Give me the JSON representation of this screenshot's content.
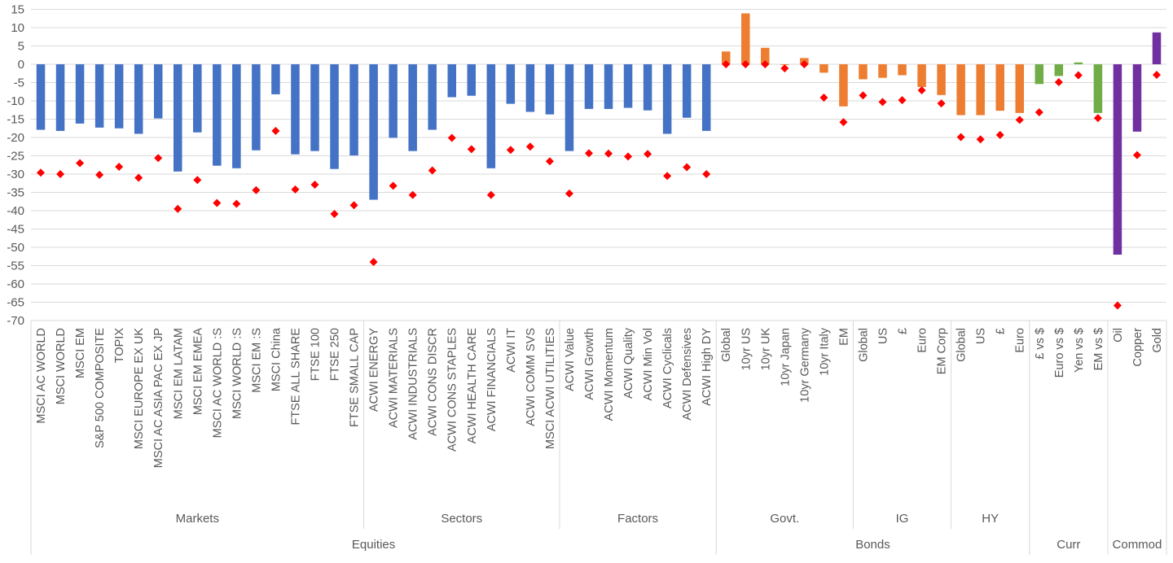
{
  "chart_data": {
    "type": "bar",
    "title": "",
    "xlabel": "",
    "ylabel": "",
    "ylim": [
      -70,
      15
    ],
    "yticks": [
      15,
      10,
      5,
      0,
      -5,
      -10,
      -15,
      -20,
      -25,
      -30,
      -35,
      -40,
      -45,
      -50,
      -55,
      -60,
      -65,
      -70
    ],
    "grid": true,
    "legend": "none",
    "colors": {
      "Equities": "#4472c4",
      "Bonds": "#ed7d31",
      "Curr": "#70ad47",
      "Commod": "#7030a0",
      "marker": "#ff0000",
      "grid": "#d9d9d9",
      "text": "#595959"
    },
    "groups": [
      {
        "name": "Equities",
        "subgroups": [
          {
            "name": "Markets",
            "categories": [
              "MSCI AC WORLD",
              "MSCI WORLD",
              "MSCI EM",
              "S&P 500 COMPOSITE",
              "TOPIX",
              "MSCI EUROPE EX UK",
              "MSCI AC ASIA PAC EX JP",
              "MSCI EM LATAM",
              "MSCI EM EMEA",
              "MSCI AC WORLD :S",
              "MSCI WORLD :S",
              "MSCI EM :S",
              "MSCI China",
              "FTSE ALL SHARE",
              "FTSE 100",
              "FTSE 250",
              "FTSE SMALL CAP"
            ]
          },
          {
            "name": "Sectors",
            "categories": [
              "ACWI ENERGY",
              "ACWI MATERIALS",
              "ACWI INDUSTRIALS",
              "ACWI CONS DISCR",
              "ACWI CONS STAPLES",
              "ACWI HEALTH CARE",
              "ACWI FINANCIALS",
              "ACWI IT",
              "ACWI COMM SVS",
              "MSCI ACWI UTILITIES"
            ]
          },
          {
            "name": "Factors",
            "categories": [
              "ACWI Value",
              "ACWI Growth",
              "ACWI Momentum",
              "ACWI Quality",
              "ACWI Min Vol",
              "ACWI Cyclicals",
              "ACWI Defensives",
              "ACWI High DY"
            ]
          }
        ]
      },
      {
        "name": "Bonds",
        "subgroups": [
          {
            "name": "Govt.",
            "categories": [
              "Global",
              "10yr US",
              "10yr UK",
              "10yr Japan",
              "10yr Germany",
              "10yr Italy",
              "EM"
            ]
          },
          {
            "name": "IG",
            "categories": [
              "Global",
              "US",
              "£",
              "Euro",
              "EM Corp"
            ]
          },
          {
            "name": "HY",
            "categories": [
              "Global",
              "US",
              "£",
              "Euro"
            ]
          }
        ]
      },
      {
        "name": "Curr",
        "subgroups": [
          {
            "name": "",
            "categories": [
              "£ vs $",
              "Euro vs $",
              "Yen vs $",
              "EM vs $"
            ]
          }
        ]
      },
      {
        "name": "Commod",
        "subgroups": [
          {
            "name": "",
            "categories": [
              "Oil",
              "Copper",
              "Gold"
            ]
          }
        ]
      }
    ],
    "series": [
      {
        "name": "bars",
        "kind": "bar",
        "values": [
          -17.9,
          -18.2,
          -16.2,
          -17.3,
          -17.5,
          -19.0,
          -14.8,
          -29.3,
          -18.6,
          -27.7,
          -28.4,
          -23.5,
          -8.2,
          -24.6,
          -23.7,
          -28.6,
          -24.9,
          -37.0,
          -20.1,
          -23.7,
          -17.9,
          -9.0,
          -8.6,
          -28.4,
          -10.8,
          -13.0,
          -13.7,
          -23.7,
          -12.2,
          -12.2,
          -11.9,
          -12.6,
          -19.0,
          -14.6,
          -18.2,
          3.5,
          13.9,
          4.5,
          -0.2,
          1.7,
          -2.3,
          -11.5,
          -4.1,
          -3.7,
          -3.0,
          -6.2,
          -8.4,
          -13.9,
          -13.9,
          -12.7,
          -13.3,
          -5.4,
          -3.2,
          0.5,
          -13.3,
          -52.0,
          -18.4,
          8.7
        ]
      },
      {
        "name": "markers",
        "kind": "scatter",
        "marker": "diamond",
        "values": [
          -29.6,
          -30.0,
          -27.0,
          -30.2,
          -28.0,
          -31.0,
          -25.6,
          -39.5,
          -31.6,
          -37.9,
          -38.1,
          -34.4,
          -18.2,
          -34.2,
          -32.9,
          -40.9,
          -38.5,
          -54.0,
          -33.2,
          -35.7,
          -29.0,
          -20.1,
          -23.2,
          -35.7,
          -23.4,
          -22.5,
          -26.5,
          -35.3,
          -24.3,
          -24.4,
          -25.2,
          -24.5,
          -30.5,
          -28.1,
          -30.0,
          0.0,
          0.0,
          0.0,
          -1.1,
          0.0,
          -9.1,
          -15.8,
          -8.5,
          -10.3,
          -9.8,
          -7.1,
          -10.7,
          -19.9,
          -20.5,
          -19.3,
          -15.2,
          -13.1,
          -4.9,
          -3.0,
          -14.7,
          -65.9,
          -24.8,
          -2.9
        ]
      }
    ]
  }
}
